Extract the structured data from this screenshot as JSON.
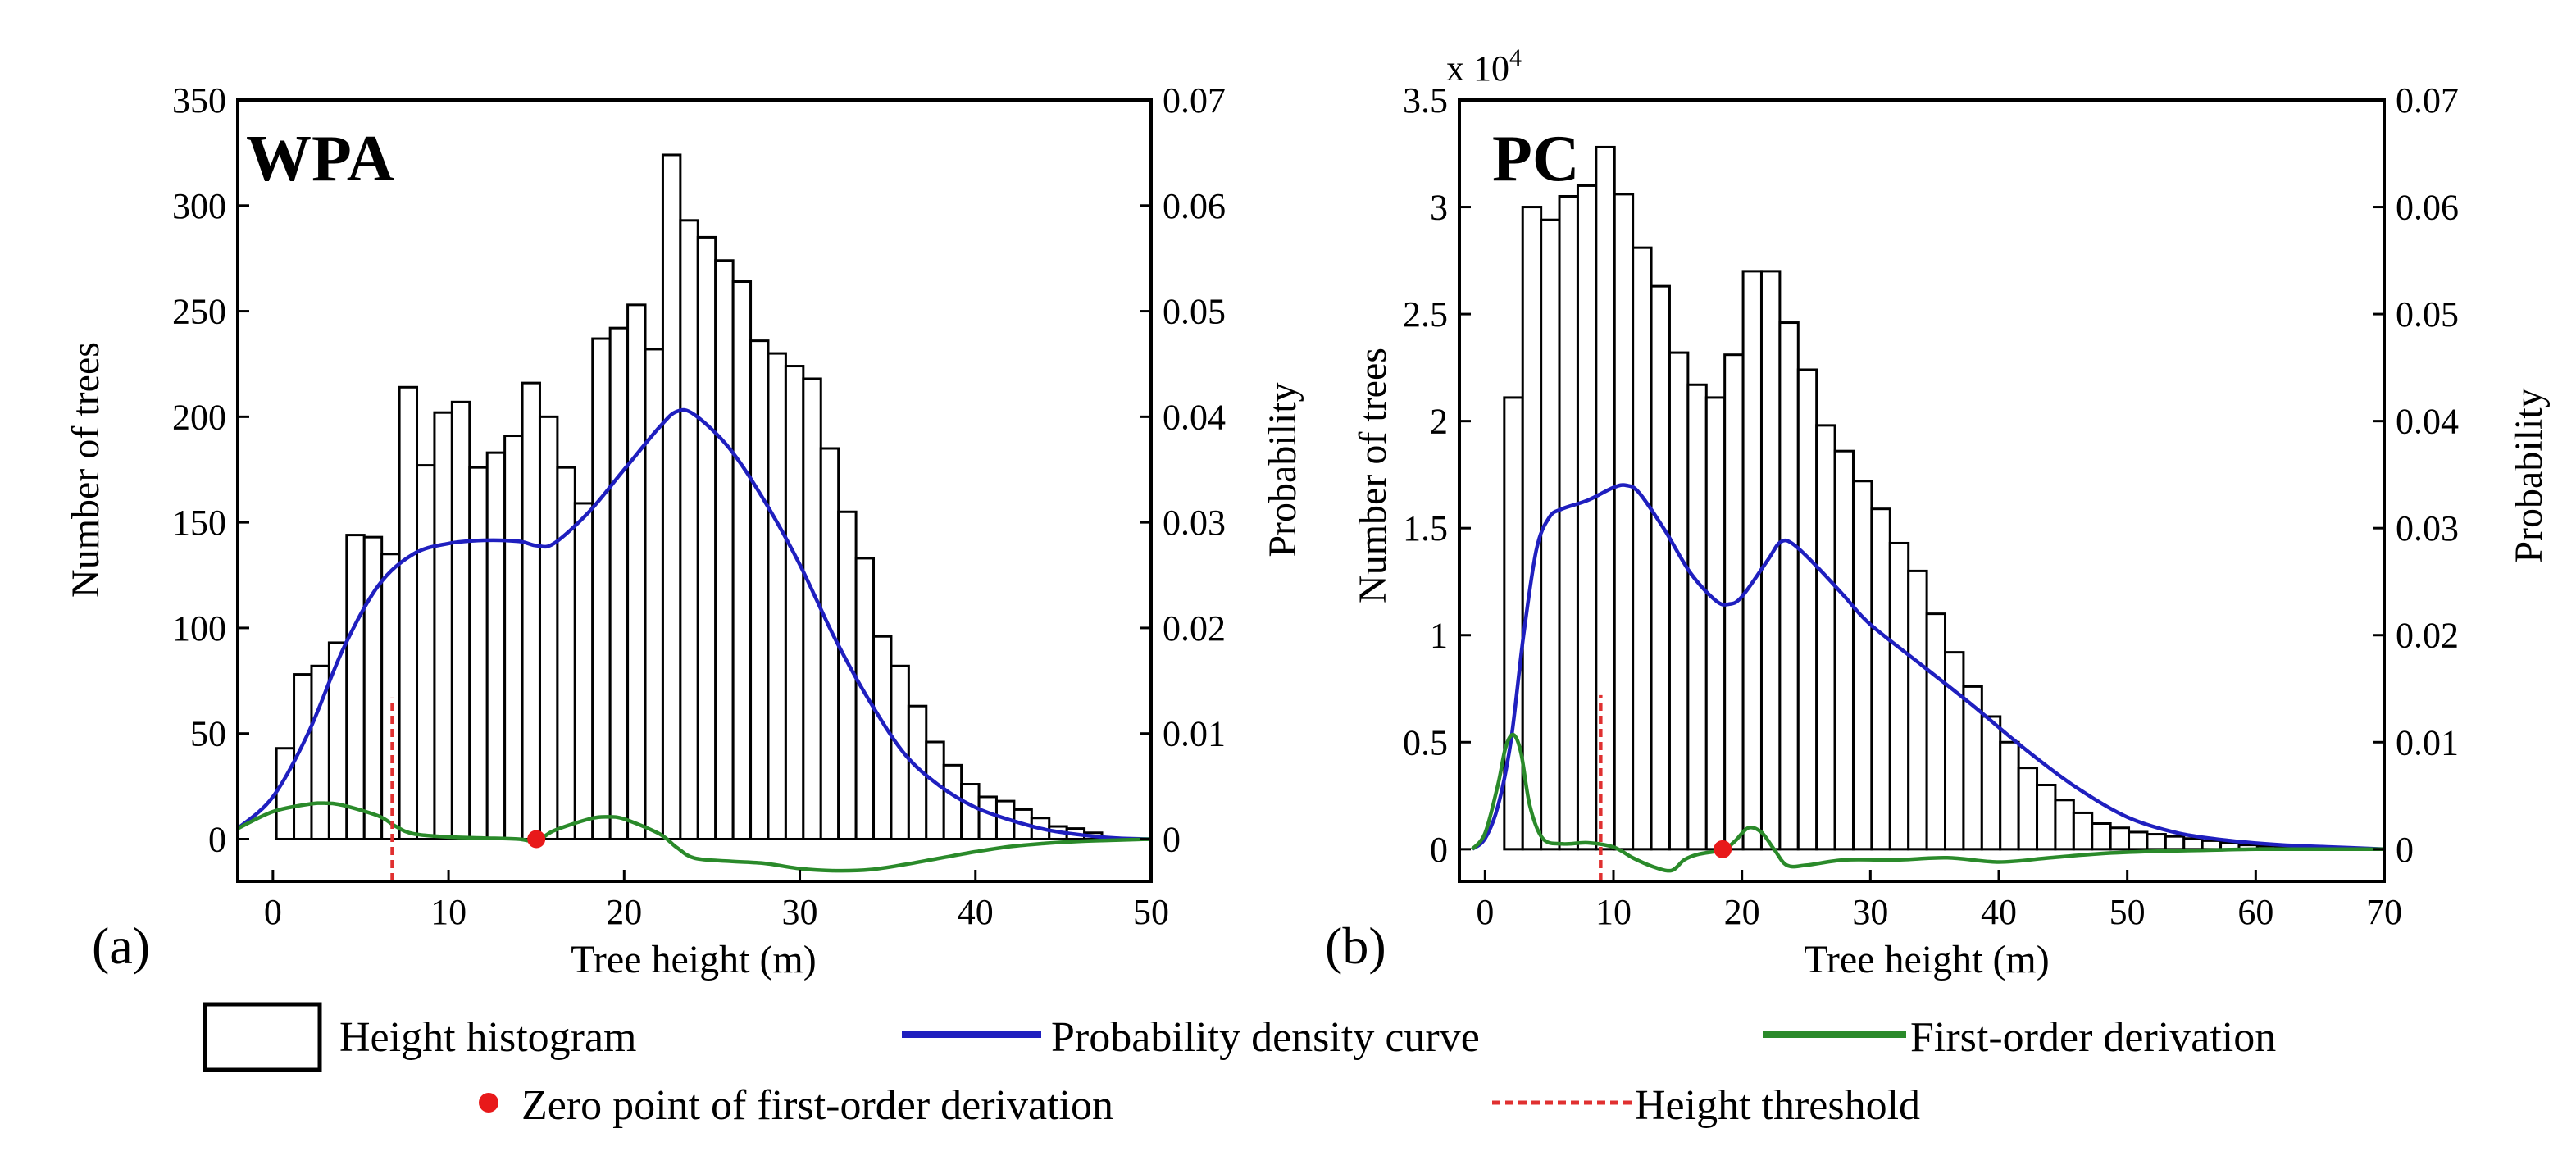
{
  "chart_data": [
    {
      "type": "bar",
      "panel_letter": "(a)",
      "title": "WPA",
      "xlabel": "Tree height (m)",
      "ylabel": "Number of trees",
      "y2label": "Probability",
      "xlim": [
        -2,
        50
      ],
      "ylim": [
        -20,
        350
      ],
      "y2lim": [
        -0.004,
        0.07
      ],
      "xticks": [
        0,
        10,
        20,
        30,
        40,
        50
      ],
      "yticks": [
        0,
        50,
        100,
        150,
        200,
        250,
        300,
        350
      ],
      "y2ticks": [
        0,
        0.01,
        0.02,
        0.03,
        0.04,
        0.05,
        0.06,
        0.07
      ],
      "y2ticklabels": [
        "0",
        "0.01",
        "0.02",
        "0.03",
        "0.04",
        "0.05",
        "0.06",
        "0.07"
      ],
      "bin_start": 0.2,
      "bin_width": 1,
      "histogram": [
        43,
        78,
        82,
        93,
        144,
        143,
        135,
        214,
        177,
        202,
        207,
        176,
        183,
        191,
        216,
        200,
        176,
        159,
        237,
        242,
        253,
        232,
        324,
        293,
        285,
        274,
        264,
        236,
        230,
        224,
        218,
        185,
        155,
        133,
        96,
        82,
        63,
        46,
        35,
        26,
        20,
        18,
        14,
        10,
        6,
        5,
        3
      ],
      "pdf_curve": {
        "name": "Probability density curve",
        "x": [
          -2,
          0,
          2,
          4,
          6,
          8,
          10,
          12,
          14,
          15,
          16,
          18,
          20,
          22,
          23,
          24,
          26,
          28,
          30,
          32,
          34,
          36,
          38,
          40,
          42,
          44,
          46,
          48,
          50
        ],
        "y": [
          0.001,
          0.004,
          0.01,
          0.018,
          0.024,
          0.027,
          0.028,
          0.0283,
          0.0282,
          0.0278,
          0.028,
          0.031,
          0.035,
          0.039,
          0.0405,
          0.0402,
          0.037,
          0.032,
          0.026,
          0.019,
          0.013,
          0.008,
          0.005,
          0.003,
          0.0018,
          0.0009,
          0.0004,
          0.0001,
          0.0
        ]
      },
      "derivative_curve": {
        "name": "First-order derivation",
        "x": [
          -2,
          0,
          2,
          3,
          4,
          6,
          7,
          8,
          10,
          12,
          14,
          15,
          16,
          18,
          19,
          20,
          22,
          23,
          24,
          26,
          28,
          30,
          32,
          34,
          36,
          38,
          40,
          42,
          44,
          46,
          48,
          50
        ],
        "y": [
          0.001,
          0.0026,
          0.0033,
          0.0034,
          0.0032,
          0.0022,
          0.0012,
          0.0005,
          0.0002,
          0.0001,
          0.0,
          -0.0002,
          0.0008,
          0.0019,
          0.0021,
          0.0019,
          0.0005,
          -0.0008,
          -0.0018,
          -0.0021,
          -0.0023,
          -0.0028,
          -0.003,
          -0.0029,
          -0.0024,
          -0.0018,
          -0.0012,
          -0.0007,
          -0.0004,
          -0.0002,
          -0.0001,
          0.0
        ]
      },
      "zero_point": {
        "x": 15,
        "y": 0
      },
      "height_threshold": {
        "x": 6.8,
        "y_range": [
          -20,
          67
        ]
      }
    },
    {
      "type": "bar",
      "panel_letter": "(b)",
      "title": "PC",
      "xlabel": "Tree height (m)",
      "ylabel": "Number of trees",
      "y2label": "Probability",
      "y_multiplier": "x 10",
      "y_multiplier_exp": "4",
      "xlim": [
        -2,
        70
      ],
      "ylim": [
        -0.15,
        3.5
      ],
      "y2lim": [
        -0.003,
        0.07
      ],
      "xticks": [
        0,
        10,
        20,
        30,
        40,
        50,
        60,
        70
      ],
      "yticks": [
        0,
        0.5,
        1,
        1.5,
        2,
        2.5,
        3,
        3.5
      ],
      "yticklabels": [
        "0",
        "0.5",
        "1",
        "1.5",
        "2",
        "2.5",
        "3",
        "3.5"
      ],
      "y2ticks": [
        0,
        0.01,
        0.02,
        0.03,
        0.04,
        0.05,
        0.06,
        0.07
      ],
      "y2ticklabels": [
        "0",
        "0.01",
        "0.02",
        "0.03",
        "0.04",
        "0.05",
        "0.06",
        "0.07"
      ],
      "bin_start": 1.5,
      "bin_width": 1.43,
      "histogram": [
        2.11,
        3.0,
        2.94,
        3.05,
        3.1,
        3.28,
        3.06,
        2.81,
        2.63,
        2.32,
        2.17,
        2.11,
        2.31,
        2.7,
        2.7,
        2.46,
        2.24,
        1.98,
        1.86,
        1.72,
        1.59,
        1.43,
        1.3,
        1.1,
        0.92,
        0.76,
        0.62,
        0.5,
        0.38,
        0.3,
        0.23,
        0.17,
        0.12,
        0.1,
        0.08,
        0.07,
        0.06,
        0.05,
        0.04,
        0.03,
        0.02,
        0.015,
        0.01
      ],
      "pdf_curve": {
        "name": "Probability density curve",
        "x": [
          -1,
          0,
          1,
          2,
          3,
          4,
          5,
          6,
          8,
          10,
          11,
          12,
          14,
          16,
          18,
          19,
          20,
          22,
          23,
          24,
          26,
          28,
          30,
          34,
          38,
          42,
          46,
          50,
          54,
          58,
          62,
          66,
          70
        ],
        "y": [
          0.0,
          0.001,
          0.004,
          0.01,
          0.02,
          0.028,
          0.031,
          0.0318,
          0.0326,
          0.0338,
          0.034,
          0.0333,
          0.0298,
          0.0258,
          0.0232,
          0.0229,
          0.0236,
          0.027,
          0.0287,
          0.0285,
          0.0262,
          0.0236,
          0.021,
          0.0172,
          0.0134,
          0.0094,
          0.0058,
          0.003,
          0.0015,
          0.0008,
          0.0004,
          0.0002,
          0.0
        ]
      },
      "derivative_curve": {
        "name": "First-order derivation",
        "x": [
          -1,
          0,
          1,
          1.6,
          2.2,
          2.8,
          3.5,
          4.5,
          6,
          8,
          10,
          11.5,
          13,
          14.5,
          15.5,
          16.5,
          18,
          18.7,
          19.5,
          20.5,
          21.5,
          22.5,
          23.5,
          25,
          28,
          32,
          36,
          40,
          44,
          48,
          52,
          56,
          60,
          66,
          70
        ],
        "y": [
          0.0,
          0.0015,
          0.006,
          0.0095,
          0.0107,
          0.009,
          0.004,
          0.001,
          0.0005,
          0.0006,
          0.0002,
          -0.0008,
          -0.0016,
          -0.002,
          -0.001,
          -0.0005,
          -0.0002,
          0.0,
          0.0008,
          0.002,
          0.0016,
          0.0,
          -0.0015,
          -0.0015,
          -0.001,
          -0.001,
          -0.0008,
          -0.0012,
          -0.0008,
          -0.0004,
          -0.0002,
          -0.0001,
          0.0,
          0.0,
          0.0
        ]
      },
      "zero_point": {
        "x": 18.5,
        "y": 0
      },
      "height_threshold": {
        "x": 9,
        "y_range": [
          -0.15,
          0.72
        ]
      }
    }
  ],
  "legend": {
    "histogram": "Height histogram",
    "pdf": "Probability density curve",
    "derivative": "First-order derivation",
    "zero": "Zero point of first-order derivation",
    "threshold": "Height threshold"
  },
  "colors": {
    "pdf": "#1f1fbf",
    "derivative": "#2a8a2a",
    "zero": "#e8191a",
    "threshold": "#e03030",
    "bar_stroke": "#000000",
    "bar_fill": "#ffffff"
  }
}
